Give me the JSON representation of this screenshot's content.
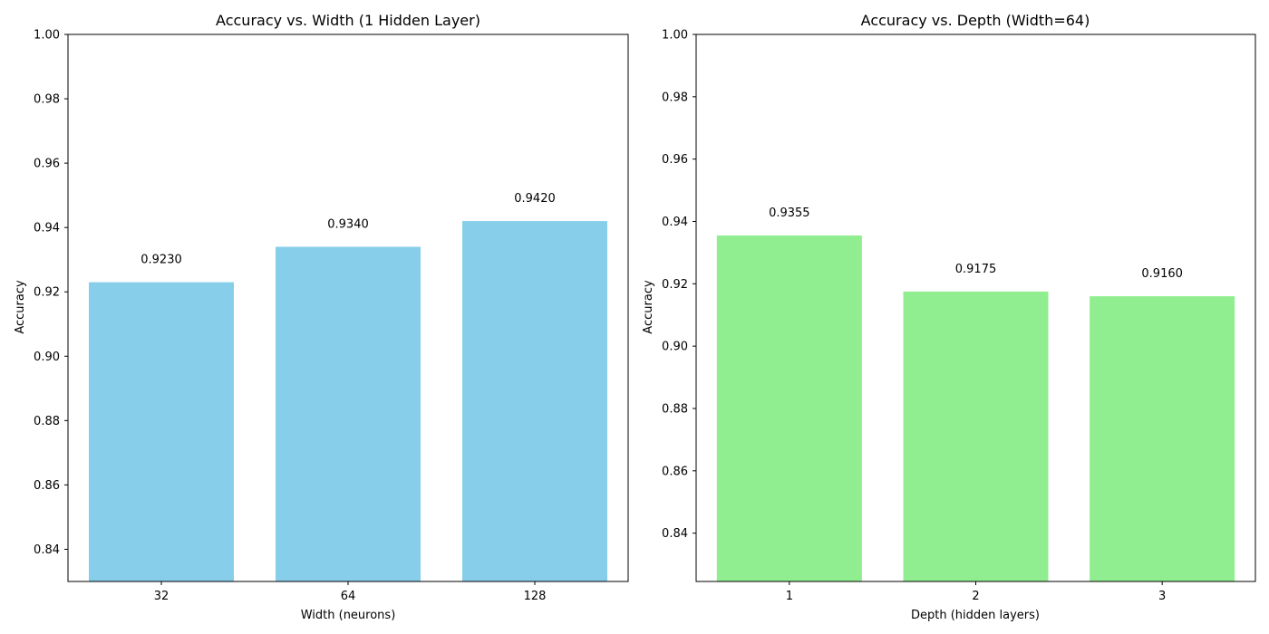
{
  "chart_data": [
    {
      "type": "bar",
      "title": "Accuracy vs. Width (1 Hidden Layer)",
      "xlabel": "Width (neurons)",
      "ylabel": "Accuracy",
      "categories": [
        "32",
        "64",
        "128"
      ],
      "values": [
        0.923,
        0.934,
        0.942
      ],
      "value_labels": [
        "0.9230",
        "0.9340",
        "0.9420"
      ],
      "ylim": [
        0.83,
        1.0
      ],
      "yticks": [
        0.84,
        0.86,
        0.88,
        0.9,
        0.92,
        0.94,
        0.96,
        0.98,
        1.0
      ],
      "ytick_labels": [
        "0.84",
        "0.86",
        "0.88",
        "0.90",
        "0.92",
        "0.94",
        "0.96",
        "0.98",
        "1.00"
      ],
      "bar_color": "#87ceeb",
      "grid": false
    },
    {
      "type": "bar",
      "title": "Accuracy vs. Depth (Width=64)",
      "xlabel": "Depth (hidden layers)",
      "ylabel": "Accuracy",
      "categories": [
        "1",
        "2",
        "3"
      ],
      "values": [
        0.9355,
        0.9175,
        0.916
      ],
      "value_labels": [
        "0.9355",
        "0.9175",
        "0.9160"
      ],
      "ylim": [
        0.8245,
        1.0
      ],
      "yticks": [
        0.84,
        0.86,
        0.88,
        0.9,
        0.92,
        0.94,
        0.96,
        0.98,
        1.0
      ],
      "ytick_labels": [
        "0.84",
        "0.86",
        "0.88",
        "0.90",
        "0.92",
        "0.94",
        "0.96",
        "0.98",
        "1.00"
      ],
      "bar_color": "#90ee90",
      "grid": false
    }
  ]
}
